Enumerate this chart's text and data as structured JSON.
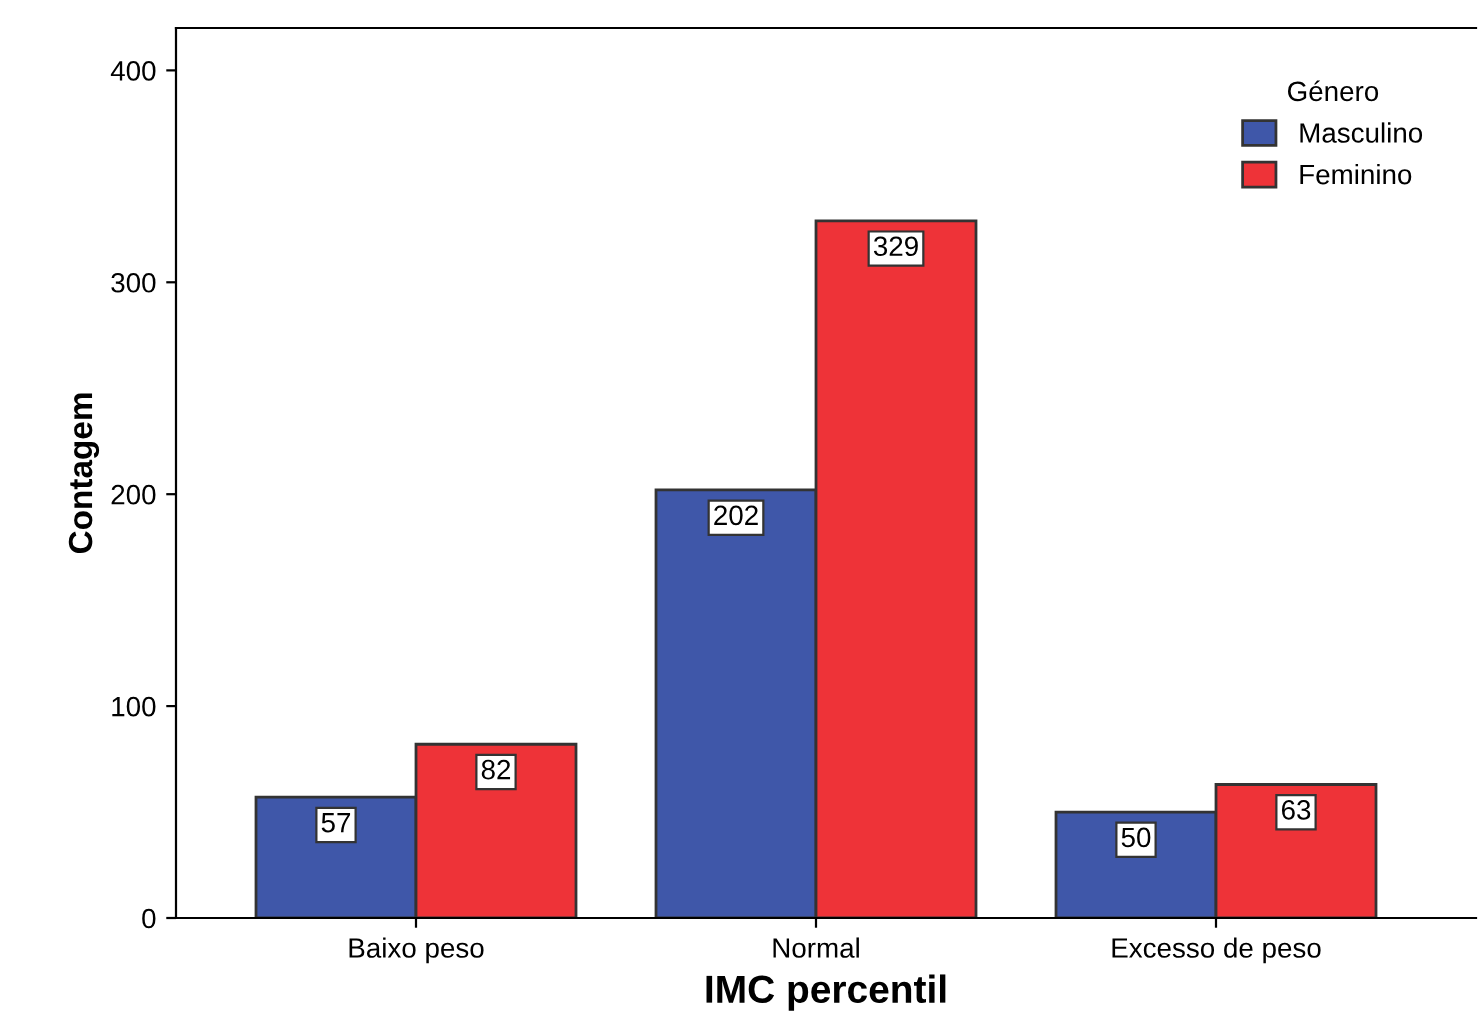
{
  "chart_data": {
    "type": "bar",
    "xlabel": "IMC percentil",
    "ylabel": "Contagem",
    "legend_title": "Género",
    "categories": [
      "Baixo peso",
      "Normal",
      "Excesso de peso"
    ],
    "series": [
      {
        "name": "Masculino",
        "color": "#3f57a9",
        "values": [
          57,
          202,
          50
        ]
      },
      {
        "name": "Feminino",
        "color": "#ee3338",
        "values": [
          82,
          329,
          63
        ]
      }
    ],
    "ylim": [
      0,
      420
    ],
    "yticks": [
      0,
      100,
      200,
      300,
      400
    ],
    "data_labels": true,
    "grid": false,
    "legend": "top right"
  }
}
